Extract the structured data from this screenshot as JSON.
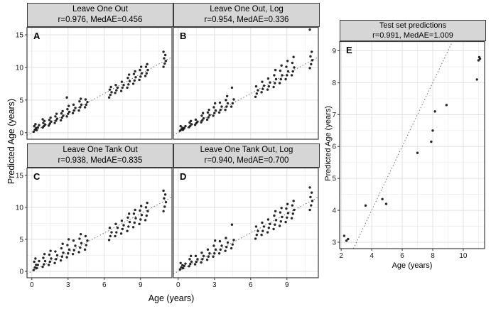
{
  "figure": {
    "background": "#ffffff",
    "strip_bg": "#d6d6d6",
    "point_color": "#0a0a0a",
    "shared_x_label": "Age (years)",
    "shared_y_label": "Predicted Age (years)"
  },
  "chart_data": [
    {
      "letter": "A",
      "type": "scatter",
      "title": "Leave One Out",
      "stats": "r=0.976, MedAE=0.456",
      "r": 0.976,
      "MedAE": 0.456,
      "xlabel": "Age (years)",
      "ylabel": "Predicted Age (years)",
      "xlim": [
        -0.4,
        11.6
      ],
      "ylim": [
        -1.0,
        16.2
      ],
      "xticks": [
        0,
        3,
        6,
        9
      ],
      "yticks": [
        0,
        5,
        10,
        15
      ],
      "identity_line": true,
      "clusters": [
        {
          "x": 0.25,
          "ys": [
            0.15,
            0.45,
            0.7,
            1.0,
            1.3
          ]
        },
        {
          "x": 0.5,
          "ys": [
            0.4,
            0.8,
            1.15
          ]
        },
        {
          "x": 1.0,
          "ys": [
            0.8,
            1.0,
            1.25,
            1.5,
            1.8,
            2.05
          ]
        },
        {
          "x": 1.5,
          "ys": [
            1.1,
            1.4,
            1.7,
            1.95,
            2.3
          ]
        },
        {
          "x": 2.0,
          "ys": [
            1.5,
            1.85,
            2.15,
            2.5,
            2.9
          ]
        },
        {
          "x": 2.5,
          "ys": [
            1.9,
            2.3,
            2.6,
            2.95,
            3.3
          ]
        },
        {
          "x": 3.0,
          "ys": [
            2.5,
            2.9,
            3.2,
            3.6,
            4.1,
            5.4
          ]
        },
        {
          "x": 3.5,
          "ys": [
            3.0,
            3.4,
            3.8,
            4.3
          ]
        },
        {
          "x": 4.0,
          "ys": [
            3.4,
            3.9,
            4.3,
            4.8,
            5.2
          ]
        },
        {
          "x": 4.5,
          "ys": [
            3.9,
            4.3,
            4.7,
            5.1
          ]
        },
        {
          "x": 6.5,
          "ys": [
            5.4,
            5.8,
            6.2,
            6.6,
            7.0
          ]
        },
        {
          "x": 7.0,
          "ys": [
            6.1,
            6.5,
            6.9,
            7.3
          ]
        },
        {
          "x": 7.5,
          "ys": [
            6.4,
            6.9,
            7.3,
            7.8
          ]
        },
        {
          "x": 8.0,
          "ys": [
            6.9,
            7.4,
            7.9,
            8.4,
            8.9
          ]
        },
        {
          "x": 8.5,
          "ys": [
            7.5,
            8.0,
            8.5,
            9.0,
            9.4
          ]
        },
        {
          "x": 9.0,
          "ys": [
            8.1,
            8.6,
            9.1,
            9.6,
            10.1
          ]
        },
        {
          "x": 9.5,
          "ys": [
            8.7,
            9.1,
            9.6,
            10.1,
            10.5
          ]
        },
        {
          "x": 11.0,
          "ys": [
            10.1,
            10.6,
            11.0,
            11.4,
            11.9,
            12.4
          ]
        }
      ]
    },
    {
      "letter": "B",
      "type": "scatter",
      "title": "Leave One Out, Log",
      "stats": "r=0.954, MedAE=0.336",
      "r": 0.954,
      "MedAE": 0.336,
      "xlabel": "Age (years)",
      "ylabel": "Predicted Age (years)",
      "xlim": [
        -0.4,
        11.6
      ],
      "ylim": [
        -1.0,
        16.2
      ],
      "xticks": [
        0,
        3,
        6,
        9
      ],
      "yticks": [
        0,
        5,
        10,
        15
      ],
      "identity_line": true,
      "clusters": [
        {
          "x": 0.25,
          "ys": [
            0.3,
            0.5,
            0.75,
            1.0
          ]
        },
        {
          "x": 0.5,
          "ys": [
            0.45,
            0.7,
            1.0
          ]
        },
        {
          "x": 1.0,
          "ys": [
            0.85,
            1.05,
            1.3,
            1.55,
            1.8
          ]
        },
        {
          "x": 1.5,
          "ys": [
            1.2,
            1.45,
            1.7,
            2.0
          ]
        },
        {
          "x": 2.0,
          "ys": [
            1.6,
            1.9,
            2.2,
            2.6,
            3.0
          ]
        },
        {
          "x": 2.5,
          "ys": [
            2.0,
            2.35,
            2.7,
            3.1,
            3.5
          ]
        },
        {
          "x": 3.0,
          "ys": [
            2.6,
            3.0,
            3.4,
            3.9,
            4.5
          ]
        },
        {
          "x": 3.5,
          "ys": [
            3.1,
            3.5,
            4.0,
            4.6
          ]
        },
        {
          "x": 4.0,
          "ys": [
            3.5,
            4.0,
            4.5,
            5.0,
            5.6
          ]
        },
        {
          "x": 4.5,
          "ys": [
            4.0,
            4.5,
            5.1,
            6.9
          ]
        },
        {
          "x": 6.5,
          "ys": [
            5.5,
            6.0,
            6.5,
            7.1
          ]
        },
        {
          "x": 7.0,
          "ys": [
            6.2,
            6.7,
            7.2,
            7.8
          ]
        },
        {
          "x": 7.5,
          "ys": [
            6.6,
            7.1,
            7.7,
            8.3
          ]
        },
        {
          "x": 8.0,
          "ys": [
            7.0,
            7.6,
            8.2,
            8.8,
            9.6
          ]
        },
        {
          "x": 8.5,
          "ys": [
            7.6,
            8.2,
            8.8,
            9.5,
            10.3
          ]
        },
        {
          "x": 9.0,
          "ys": [
            8.2,
            8.8,
            9.4,
            10.1,
            11.0
          ]
        },
        {
          "x": 9.5,
          "ys": [
            8.8,
            9.4,
            10.0,
            10.7,
            11.6
          ]
        },
        {
          "x": 11.0,
          "ys": [
            9.9,
            10.5,
            11.1,
            11.7,
            12.4,
            15.8
          ]
        }
      ]
    },
    {
      "letter": "C",
      "type": "scatter",
      "title": "Leave One Tank Out",
      "stats": "r=0.938, MedAE=0.835",
      "r": 0.938,
      "MedAE": 0.835,
      "xlabel": "Age (years)",
      "ylabel": "Predicted Age (years)",
      "xlim": [
        -0.4,
        11.6
      ],
      "ylim": [
        -1.0,
        16.2
      ],
      "xticks": [
        0,
        3,
        6,
        9
      ],
      "yticks": [
        0,
        5,
        10,
        15
      ],
      "identity_line": true,
      "clusters": [
        {
          "x": 0.25,
          "ys": [
            0.2,
            0.6,
            1.0,
            1.5,
            2.0
          ]
        },
        {
          "x": 0.5,
          "ys": [
            0.5,
            1.0,
            1.6
          ]
        },
        {
          "x": 1.0,
          "ys": [
            0.7,
            1.1,
            1.6,
            2.1,
            2.7
          ]
        },
        {
          "x": 1.5,
          "ys": [
            1.0,
            1.5,
            2.0,
            2.6,
            3.2
          ]
        },
        {
          "x": 2.0,
          "ys": [
            1.3,
            1.9,
            2.5,
            3.1
          ]
        },
        {
          "x": 2.5,
          "ys": [
            1.7,
            2.3,
            2.9,
            3.6,
            4.3
          ]
        },
        {
          "x": 3.0,
          "ys": [
            2.2,
            2.8,
            3.4,
            4.1,
            5.0
          ]
        },
        {
          "x": 3.5,
          "ys": [
            2.7,
            3.3,
            4.0,
            4.8
          ]
        },
        {
          "x": 4.0,
          "ys": [
            3.0,
            3.7,
            4.4,
            5.1,
            5.8
          ]
        },
        {
          "x": 4.5,
          "ys": [
            3.4,
            4.1,
            4.8,
            5.5
          ]
        },
        {
          "x": 6.5,
          "ys": [
            4.9,
            5.5,
            6.1,
            6.8
          ]
        },
        {
          "x": 7.0,
          "ys": [
            5.5,
            6.1,
            6.8,
            7.4
          ]
        },
        {
          "x": 7.5,
          "ys": [
            5.9,
            6.6,
            7.2,
            7.9
          ]
        },
        {
          "x": 8.0,
          "ys": [
            6.3,
            7.0,
            7.7,
            8.4,
            9.0
          ]
        },
        {
          "x": 8.5,
          "ys": [
            6.9,
            7.6,
            8.3,
            9.0,
            9.6
          ]
        },
        {
          "x": 9.0,
          "ys": [
            7.4,
            8.1,
            8.8,
            9.5,
            10.2
          ]
        },
        {
          "x": 9.5,
          "ys": [
            8.0,
            8.7,
            9.4,
            10.0,
            10.7
          ]
        },
        {
          "x": 11.0,
          "ys": [
            9.4,
            10.1,
            10.8,
            11.4,
            12.0,
            12.6
          ]
        }
      ]
    },
    {
      "letter": "D",
      "type": "scatter",
      "title": "Leave One Tank Out, Log",
      "stats": "r=0.940, MedAE=0.700",
      "r": 0.94,
      "MedAE": 0.7,
      "xlabel": "Age (years)",
      "ylabel": "Predicted Age (years)",
      "xlim": [
        -0.4,
        11.6
      ],
      "ylim": [
        -1.0,
        16.2
      ],
      "xticks": [
        0,
        3,
        6,
        9
      ],
      "yticks": [
        0,
        5,
        10,
        15
      ],
      "identity_line": true,
      "clusters": [
        {
          "x": 0.25,
          "ys": [
            0.3,
            0.6,
            0.95,
            1.3
          ]
        },
        {
          "x": 0.5,
          "ys": [
            0.5,
            0.85,
            1.2
          ]
        },
        {
          "x": 1.0,
          "ys": [
            0.8,
            1.15,
            1.5,
            1.9,
            2.4
          ]
        },
        {
          "x": 1.5,
          "ys": [
            1.1,
            1.5,
            1.9,
            2.4
          ]
        },
        {
          "x": 2.0,
          "ys": [
            1.4,
            1.9,
            2.4,
            2.9
          ]
        },
        {
          "x": 2.5,
          "ys": [
            1.8,
            2.3,
            2.8,
            3.4
          ]
        },
        {
          "x": 3.0,
          "ys": [
            2.3,
            2.8,
            3.4,
            4.0,
            4.8
          ]
        },
        {
          "x": 3.5,
          "ys": [
            2.8,
            3.4,
            4.0,
            4.7
          ]
        },
        {
          "x": 4.0,
          "ys": [
            3.2,
            3.8,
            4.5,
            5.2
          ]
        },
        {
          "x": 4.5,
          "ys": [
            3.6,
            4.2,
            4.9,
            7.3
          ]
        },
        {
          "x": 6.5,
          "ys": [
            5.1,
            5.7,
            6.3,
            7.0
          ]
        },
        {
          "x": 7.0,
          "ys": [
            5.7,
            6.3,
            7.0,
            7.6
          ]
        },
        {
          "x": 7.5,
          "ys": [
            6.1,
            6.8,
            7.4,
            8.1
          ]
        },
        {
          "x": 8.0,
          "ys": [
            6.6,
            7.3,
            8.0,
            8.7,
            9.4
          ]
        },
        {
          "x": 8.5,
          "ys": [
            7.1,
            7.8,
            8.5,
            9.2,
            9.9
          ]
        },
        {
          "x": 9.0,
          "ys": [
            7.7,
            8.4,
            9.1,
            9.8,
            10.5
          ]
        },
        {
          "x": 9.5,
          "ys": [
            8.3,
            9.0,
            9.6,
            10.3,
            11.0
          ]
        },
        {
          "x": 11.0,
          "ys": [
            9.6,
            10.3,
            11.0,
            11.6,
            12.3,
            13.1
          ]
        }
      ]
    },
    {
      "letter": "E",
      "type": "scatter",
      "title": "Test set predictions",
      "stats": "r=0.991, MedAE=1.009",
      "r": 0.991,
      "MedAE": 1.009,
      "xlabel": "Age (years)",
      "ylabel": "Predicted Age (years)",
      "xlim": [
        1.9,
        11.4
      ],
      "ylim": [
        2.8,
        9.3
      ],
      "xticks": [
        2,
        4,
        6,
        8,
        10
      ],
      "yticks": [
        3,
        4,
        5,
        6,
        7,
        8,
        9
      ],
      "identity_line": true,
      "points": [
        [
          2.2,
          3.2
        ],
        [
          2.35,
          3.05
        ],
        [
          2.45,
          3.1
        ],
        [
          3.6,
          4.15
        ],
        [
          4.7,
          4.35
        ],
        [
          4.95,
          4.2
        ],
        [
          7.0,
          5.8
        ],
        [
          7.9,
          6.15
        ],
        [
          8.0,
          6.5
        ],
        [
          8.15,
          7.1
        ],
        [
          8.9,
          7.3
        ],
        [
          10.9,
          8.1
        ],
        [
          11.0,
          8.7
        ],
        [
          11.05,
          8.8
        ],
        [
          11.1,
          8.75
        ]
      ]
    }
  ]
}
